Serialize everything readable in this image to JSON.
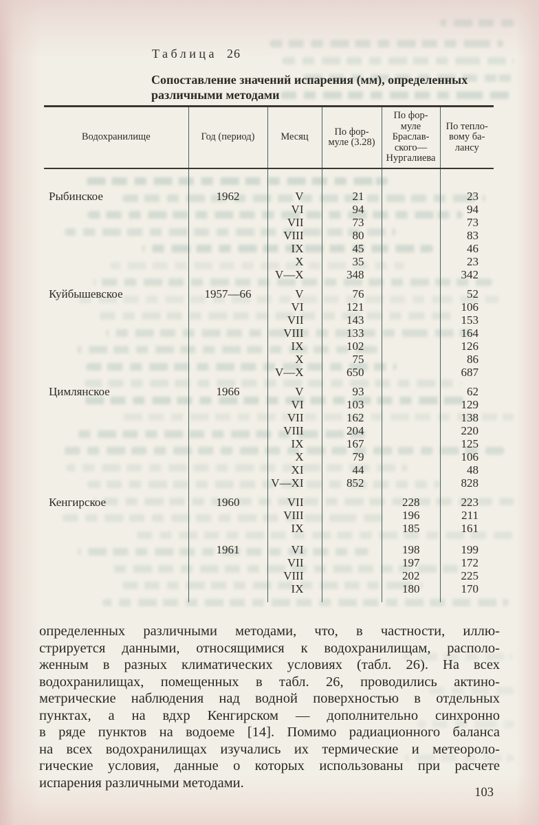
{
  "page": {
    "table_label_word": "Таблица",
    "table_label_number": "26",
    "table_title": "Сопоставление значений испарения (мм), определенных различными методами",
    "page_number": "103"
  },
  "table": {
    "headers": [
      {
        "name": "reservoir",
        "lines": [
          "Водохранилище"
        ]
      },
      {
        "name": "year-period",
        "lines": [
          "Год (период)"
        ]
      },
      {
        "name": "month",
        "lines": [
          "Месяц"
        ]
      },
      {
        "name": "formula-328",
        "lines": [
          "По фор-",
          "муле (3.28)"
        ]
      },
      {
        "name": "braslavsky",
        "lines": [
          "По фор-",
          "муле",
          "Браслав-",
          "ского—",
          "Нургалиева"
        ]
      },
      {
        "name": "heat-balance",
        "lines": [
          "По тепло-",
          "вому ба-",
          "лансу"
        ]
      }
    ],
    "groups": [
      {
        "reservoir": "Рыбинское",
        "blocks": [
          {
            "year": "1962",
            "rows": [
              [
                "V",
                "21",
                "",
                "23"
              ],
              [
                "VI",
                "94",
                "",
                "94"
              ],
              [
                "VII",
                "73",
                "",
                "73"
              ],
              [
                "VIII",
                "80",
                "",
                "83"
              ],
              [
                "IX",
                "45",
                "",
                "46"
              ],
              [
                "X",
                "35",
                "",
                "23"
              ],
              [
                "V—X",
                "348",
                "",
                "342"
              ]
            ]
          }
        ]
      },
      {
        "reservoir": "Куйбышевское",
        "blocks": [
          {
            "year": "1957—66",
            "rows": [
              [
                "V",
                "76",
                "",
                "52"
              ],
              [
                "VI",
                "121",
                "",
                "106"
              ],
              [
                "VII",
                "143",
                "",
                "153"
              ],
              [
                "VIII",
                "133",
                "",
                "164"
              ],
              [
                "IX",
                "102",
                "",
                "126"
              ],
              [
                "X",
                "75",
                "",
                "86"
              ],
              [
                "V—X",
                "650",
                "",
                "687"
              ]
            ]
          }
        ]
      },
      {
        "reservoir": "Цимлянское",
        "blocks": [
          {
            "year": "1966",
            "rows": [
              [
                "V",
                "93",
                "",
                "62"
              ],
              [
                "VI",
                "103",
                "",
                "129"
              ],
              [
                "VII",
                "162",
                "",
                "138"
              ],
              [
                "VIII",
                "204",
                "",
                "220"
              ],
              [
                "IX",
                "167",
                "",
                "125"
              ],
              [
                "X",
                "79",
                "",
                "106"
              ],
              [
                "XI",
                "44",
                "",
                "48"
              ],
              [
                "V—XI",
                "852",
                "",
                "828"
              ]
            ]
          }
        ]
      },
      {
        "reservoir": "Кенгирское",
        "blocks": [
          {
            "year": "1960",
            "rows": [
              [
                "VII",
                "",
                "228",
                "223"
              ],
              [
                "VIII",
                "",
                "196",
                "211"
              ],
              [
                "IX",
                "",
                "185",
                "161"
              ]
            ]
          },
          {
            "year": "1961",
            "rows": [
              [
                "VI",
                "",
                "198",
                "199"
              ],
              [
                "VII",
                "",
                "197",
                "172"
              ],
              [
                "VIII",
                "",
                "202",
                "225"
              ],
              [
                "IX",
                "",
                "180",
                "170"
              ]
            ]
          }
        ]
      }
    ]
  },
  "body_text": {
    "lines": [
      "определенных различными методами, что, в частности, иллю-",
      "стрируется данными, относящимися к водохранилищам, располо-",
      "женным в разных климатических условиях (табл. 26). На всех",
      "водохранилищах, помещенных в табл. 26, проводились актино-",
      "метрические наблюдения над водной поверхностью в отдельных",
      "пунктах, а на вдхр Кенгирском — дополнительно синхронно",
      "в ряде пунктов на водоеме [14]. Помимо радиационного баланса",
      "на всех водохранилищах изучались их термические и метеороло-",
      "гические условия, данные о которых использованы при расчете",
      "испарения различными методами."
    ]
  }
}
